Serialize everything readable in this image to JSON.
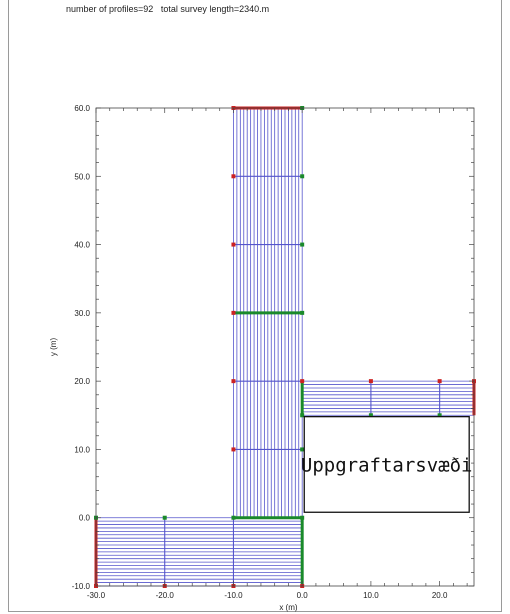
{
  "header": {
    "profiles_text": "number of profiles=92",
    "length_text": "total survey length=2340.m"
  },
  "chart_data": {
    "type": "scatter",
    "xlabel": "x (m)",
    "ylabel": "y (m)",
    "xlim": [
      -30,
      25
    ],
    "ylim": [
      -10,
      60
    ],
    "x_ticks": [
      -30,
      -20,
      -10,
      0,
      10,
      20
    ],
    "x_tick_labels": [
      "-30.0",
      "-20.0",
      "-10.0",
      "0.0",
      "10.0",
      "20.0"
    ],
    "y_ticks": [
      -10,
      0,
      10,
      20,
      30,
      40,
      50,
      60
    ],
    "y_tick_labels": [
      "-10.0",
      "0.0",
      "10.0",
      "20.0",
      "30.0",
      "40.0",
      "50.0",
      "60.0"
    ],
    "grid": false,
    "line_color": "#5555cc",
    "electrode_colors": {
      "start": "#cc2222",
      "end": "#1a8a2a"
    },
    "profiles": {
      "vertical_strip": {
        "x_range": [
          -10,
          0
        ],
        "y_range": [
          0,
          60
        ],
        "count": 21,
        "direction": "vertical"
      },
      "bottom_strip": {
        "x_range": [
          -30,
          0
        ],
        "y_range": [
          -10,
          0
        ],
        "count": 21,
        "direction": "horizontal"
      },
      "right_strip": {
        "x_range": [
          0,
          25
        ],
        "y_range": [
          15,
          20
        ],
        "count": 11,
        "direction": "horizontal"
      }
    },
    "tie_lines": [
      {
        "orientation": "h",
        "y": 10,
        "x_range": [
          -10,
          0
        ]
      },
      {
        "orientation": "h",
        "y": 20,
        "x_range": [
          -10,
          0
        ]
      },
      {
        "orientation": "h",
        "y": 30,
        "x_range": [
          -10,
          0
        ]
      },
      {
        "orientation": "h",
        "y": 40,
        "x_range": [
          -10,
          0
        ]
      },
      {
        "orientation": "h",
        "y": 50,
        "x_range": [
          -10,
          0
        ]
      },
      {
        "orientation": "v",
        "x": -20,
        "y_range": [
          -10,
          0
        ]
      },
      {
        "orientation": "v",
        "x": -10,
        "y_range": [
          -10,
          0
        ]
      },
      {
        "orientation": "v",
        "x": 10,
        "y_range": [
          15,
          20
        ]
      },
      {
        "orientation": "v",
        "x": 20,
        "y_range": [
          15,
          20
        ]
      }
    ],
    "thick_lines": [
      {
        "from": [
          -10,
          60
        ],
        "to": [
          0,
          60
        ],
        "color": "#cc2222"
      },
      {
        "from": [
          -10,
          30
        ],
        "to": [
          0,
          30
        ],
        "color": "#1a8a2a"
      },
      {
        "from": [
          -10,
          0
        ],
        "to": [
          0,
          0
        ],
        "color": "#1a8a2a"
      },
      {
        "from": [
          0,
          0
        ],
        "to": [
          0,
          -10
        ],
        "color": "#1a8a2a"
      },
      {
        "from": [
          -30,
          0
        ],
        "to": [
          -30,
          -10
        ],
        "color": "#cc2222"
      },
      {
        "from": [
          0,
          15
        ],
        "to": [
          0,
          20
        ],
        "color": "#1a8a2a"
      },
      {
        "from": [
          25,
          15
        ],
        "to": [
          25,
          20
        ],
        "color": "#cc2222"
      }
    ],
    "markers": [
      {
        "x": -10,
        "y": 60,
        "kind": "start"
      },
      {
        "x": 0,
        "y": 60,
        "kind": "end"
      },
      {
        "x": -10,
        "y": 50,
        "kind": "start"
      },
      {
        "x": 0,
        "y": 50,
        "kind": "end"
      },
      {
        "x": -10,
        "y": 40,
        "kind": "start"
      },
      {
        "x": 0,
        "y": 40,
        "kind": "end"
      },
      {
        "x": -10,
        "y": 30,
        "kind": "start"
      },
      {
        "x": 0,
        "y": 30,
        "kind": "end"
      },
      {
        "x": -10,
        "y": 20,
        "kind": "start"
      },
      {
        "x": 0,
        "y": 20,
        "kind": "start"
      },
      {
        "x": -10,
        "y": 10,
        "kind": "start"
      },
      {
        "x": 0,
        "y": 10,
        "kind": "end"
      },
      {
        "x": -30,
        "y": 0,
        "kind": "end"
      },
      {
        "x": -20,
        "y": 0,
        "kind": "end"
      },
      {
        "x": -10,
        "y": 0,
        "kind": "end"
      },
      {
        "x": 0,
        "y": 0,
        "kind": "end"
      },
      {
        "x": -30,
        "y": -10,
        "kind": "start"
      },
      {
        "x": -20,
        "y": -10,
        "kind": "start"
      },
      {
        "x": -10,
        "y": -10,
        "kind": "start"
      },
      {
        "x": 0,
        "y": -10,
        "kind": "start"
      },
      {
        "x": 10,
        "y": 20,
        "kind": "start"
      },
      {
        "x": 20,
        "y": 20,
        "kind": "start"
      },
      {
        "x": 25,
        "y": 20,
        "kind": "start"
      },
      {
        "x": 10,
        "y": 15,
        "kind": "end"
      },
      {
        "x": 20,
        "y": 15,
        "kind": "end"
      },
      {
        "x": 0,
        "y": 15,
        "kind": "end"
      }
    ],
    "annotation": {
      "text": "Uppgraftarsvæði",
      "x_range": [
        0.3,
        24.3
      ],
      "y_range": [
        0.8,
        14.8
      ]
    }
  }
}
